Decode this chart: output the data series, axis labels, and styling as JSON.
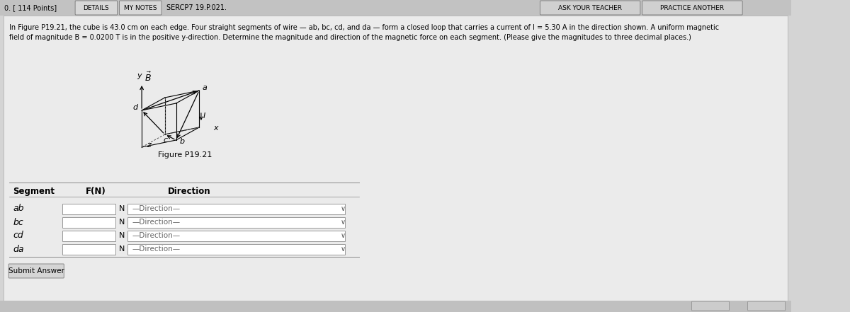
{
  "bg_color": "#d4d4d4",
  "panel_color": "#e8e8e8",
  "title_text": "In Figure P19.21, the cube is 43.0 cm on each edge. Four straight segments of wire — ab, bc, cd, and da — form a closed loop that carries a current of I = 5.30 A in the direction shown. A uniform magnetic",
  "title_text2": "field of magnitude B = 0.0200 T is in the positive y-direction. Determine the magnitude and direction of the magnetic force on each segment. (Please give the magnitudes to three decimal places.)",
  "figure_caption": "Figure P19.21",
  "table_header_segment": "Segment",
  "table_header_fn": "F(N)",
  "table_header_direction": "Direction",
  "segments": [
    "ab",
    "bc",
    "cd",
    "da"
  ],
  "direction_placeholder": "—Direction—",
  "unit": "N",
  "submit_text": "Submit Answer",
  "top_left": "0. [ 114 Points]",
  "btn1": "DETAILS",
  "btn2": "MY NOTES",
  "btn3": "SERCP7 19.P.021.",
  "btn4": "ASK YOUR TEACHER",
  "btn5": "PRACTICE ANOTHER"
}
